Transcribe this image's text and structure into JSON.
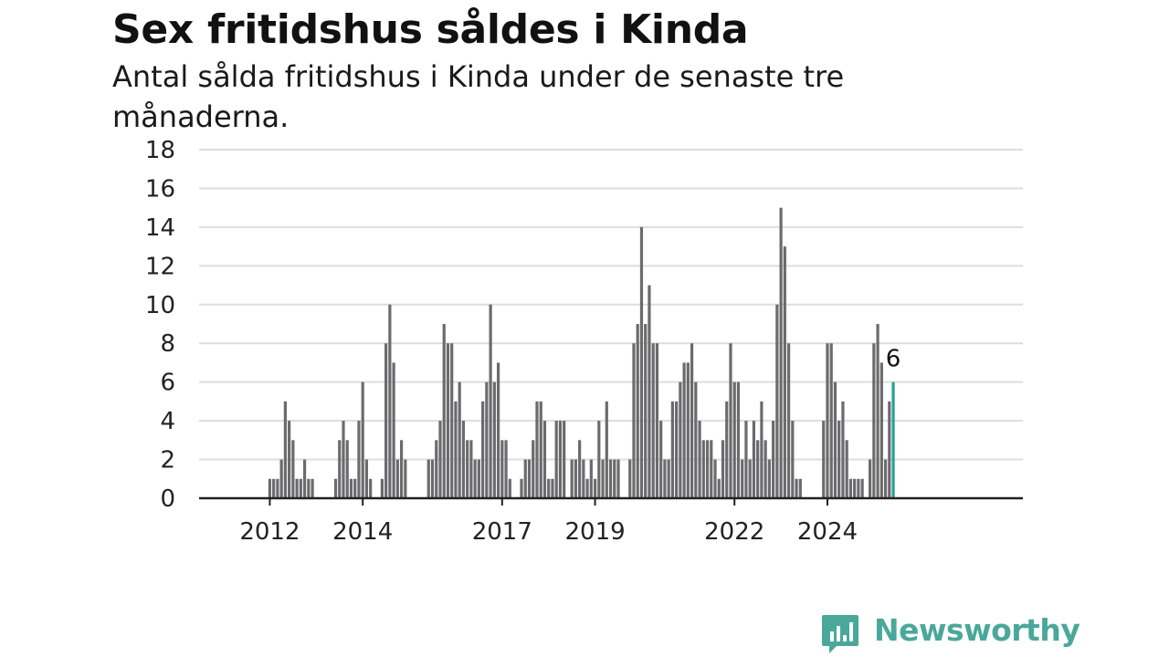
{
  "title": "Sex fritidshus såldes i Kinda",
  "subtitle": "Antal sålda fritidshus i Kinda under de senaste tre månaderna.",
  "logo_text": "Newsworthy",
  "colors": {
    "bar": "#6b6b6e",
    "highlight": "#23a294",
    "grid": "#dddddd",
    "axis": "#222222",
    "logo": "#4aa89a"
  },
  "chart_data": {
    "type": "bar",
    "title": "Sex fritidshus såldes i Kinda",
    "subtitle": "Antal sålda fritidshus i Kinda under de senaste tre månaderna.",
    "xlabel": "",
    "ylabel": "",
    "ylim": [
      0,
      18
    ],
    "y_ticks": [
      0,
      2,
      4,
      6,
      8,
      10,
      12,
      14,
      16,
      18
    ],
    "x_tick_labels": [
      "2012",
      "2014",
      "2017",
      "2019",
      "2022",
      "2024"
    ],
    "grid": true,
    "start": "2011-05",
    "frequency": "monthly",
    "values": [
      0,
      0,
      0,
      0,
      0,
      0,
      0,
      0,
      1,
      1,
      1,
      2,
      5,
      4,
      3,
      1,
      1,
      2,
      1,
      1,
      0,
      0,
      0,
      0,
      0,
      1,
      3,
      4,
      3,
      1,
      1,
      4,
      6,
      2,
      1,
      0,
      0,
      1,
      8,
      10,
      7,
      2,
      3,
      2,
      0,
      0,
      0,
      0,
      0,
      2,
      2,
      3,
      4,
      9,
      8,
      8,
      5,
      6,
      4,
      3,
      3,
      2,
      2,
      5,
      6,
      10,
      6,
      7,
      3,
      3,
      1,
      0,
      0,
      1,
      2,
      2,
      3,
      5,
      5,
      4,
      1,
      1,
      4,
      4,
      4,
      0,
      2,
      2,
      3,
      2,
      1,
      2,
      1,
      4,
      2,
      5,
      2,
      2,
      2,
      0,
      0,
      2,
      8,
      9,
      14,
      9,
      11,
      8,
      8,
      4,
      2,
      2,
      5,
      5,
      6,
      7,
      7,
      8,
      6,
      4,
      3,
      3,
      3,
      2,
      1,
      3,
      5,
      8,
      6,
      6,
      2,
      4,
      2,
      4,
      3,
      5,
      3,
      2,
      4,
      10,
      15,
      13,
      8,
      4,
      1,
      1,
      0,
      0,
      0,
      0,
      0,
      4,
      8,
      8,
      6,
      4,
      5,
      3,
      1,
      1,
      1,
      1,
      0,
      2,
      8,
      9,
      7,
      2,
      5,
      6
    ],
    "highlight_label": "6"
  }
}
